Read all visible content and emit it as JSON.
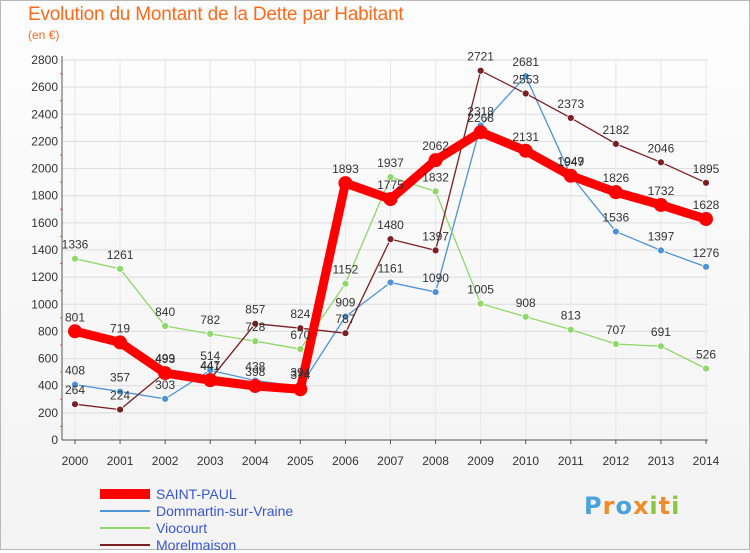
{
  "title": "Evolution du Montant de la Dette par Habitant",
  "subtitle": "(en €)",
  "chart_data": {
    "type": "line",
    "title": "Evolution du Montant de la Dette par Habitant",
    "subtitle": "(en €)",
    "ylim": [
      0,
      2800
    ],
    "yticks": [
      0,
      200,
      400,
      600,
      800,
      1000,
      1200,
      1400,
      1600,
      1800,
      2000,
      2200,
      2400,
      2600,
      2800
    ],
    "grid": true,
    "legend_position": "bottom-left",
    "x": [
      2000,
      2001,
      2002,
      2003,
      2004,
      2005,
      2006,
      2007,
      2008,
      2009,
      2010,
      2011,
      2012,
      2013,
      2014
    ],
    "series": [
      {
        "name": "Dommartin-sur-Vraine",
        "color": "#4d93d6",
        "values": [
          408,
          357,
          303,
          514,
          438,
          394,
          909,
          1161,
          1090,
          2318,
          2681,
          1949,
          1536,
          1397,
          1276
        ]
      },
      {
        "name": "Viocourt",
        "color": "#8fd86a",
        "values": [
          1336,
          1261,
          840,
          782,
          728,
          670,
          1152,
          1937,
          1832,
          1005,
          908,
          813,
          707,
          691,
          526
        ]
      },
      {
        "name": "Morelmaison",
        "color": "#7a1f22",
        "values": [
          264,
          224,
          499,
          447,
          857,
          824,
          787,
          1480,
          1397,
          2721,
          2553,
          2373,
          2182,
          2046,
          1895
        ]
      },
      {
        "name": "SAINT-PAUL",
        "color": "#ff0000",
        "values": [
          801,
          719,
          493,
          441,
          398,
          374,
          1893,
          1775,
          2062,
          2268,
          2131,
          1947,
          1826,
          1732,
          1628
        ]
      }
    ]
  },
  "logo_text": "Proxiti"
}
